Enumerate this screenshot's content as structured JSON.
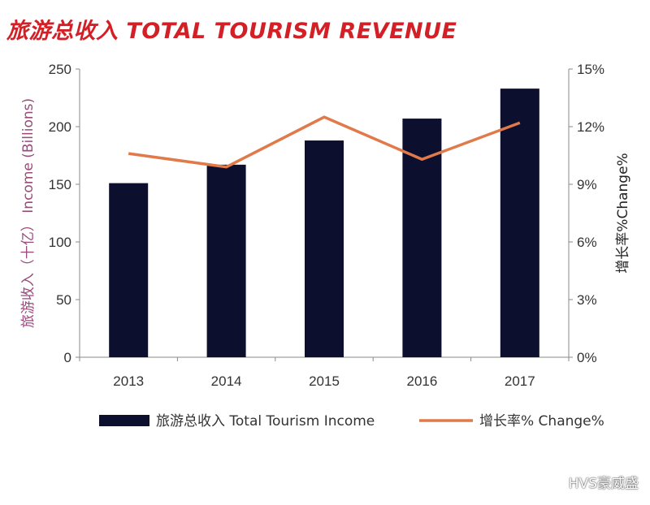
{
  "title": "旅游总收入 TOTAL TOURISM REVENUE",
  "watermark": "HVS豪威盛",
  "colors": {
    "bar": "#0d0f2e",
    "line": "#e07a4a",
    "title": "#d31f26",
    "axis": "#8a8a8a",
    "ylabel": "#9b4a7c"
  },
  "chart_data": {
    "type": "bar",
    "categories": [
      "2013",
      "2014",
      "2015",
      "2016",
      "2017"
    ],
    "series": [
      {
        "name": "旅游总收入 Total Tourism Income",
        "type": "bar",
        "axis": "left",
        "values": [
          151,
          167,
          188,
          207,
          233
        ]
      },
      {
        "name": "增长率% Change%",
        "type": "line",
        "axis": "right",
        "values": [
          10.6,
          9.9,
          12.5,
          10.3,
          12.2
        ]
      }
    ],
    "ylabel": "旅游收入（十亿） Income (Billions)",
    "y2label": "增长率%Change%",
    "ylim": [
      0,
      250
    ],
    "y2lim": [
      0,
      15
    ],
    "yticks": [
      "0",
      "50",
      "100",
      "150",
      "200",
      "250"
    ],
    "y2ticks": [
      "0%",
      "3%",
      "6%",
      "9%",
      "12%",
      "15%"
    ],
    "grid": false,
    "legend": "bottom"
  }
}
